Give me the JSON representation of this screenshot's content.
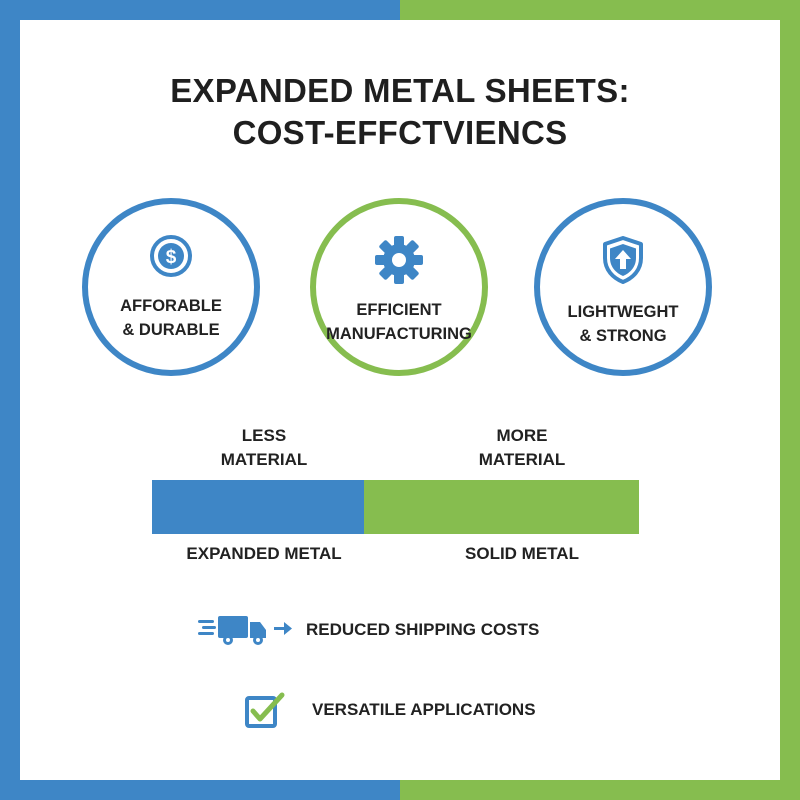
{
  "colors": {
    "blue": "#3e86c6",
    "green": "#86bd4f",
    "text": "#222222"
  },
  "title": {
    "line1": "EXPANDED METAL SHEETS:",
    "line2": "COST-EFFCTVIENCS"
  },
  "features": [
    {
      "icon": "dollar-coin-icon",
      "line1": "AFFORABLE",
      "line2": "& DURABLE",
      "ring_color": "blue"
    },
    {
      "icon": "gear-icon",
      "line1": "EFFICIENT",
      "line2": "MANUFACTURING",
      "ring_color": "green"
    },
    {
      "icon": "shield-arrow-icon",
      "line1": "LIGHTWEGHT",
      "line2": "& STRONG",
      "ring_color": "blue"
    }
  ],
  "comparison": {
    "left": {
      "top_line1": "LESS",
      "top_line2": "MATERIAL",
      "name": "EXPANDED METAL"
    },
    "right": {
      "top_line1": "MORE",
      "top_line2": "MATERIAL",
      "name": "SOLID METAL"
    }
  },
  "benefits": [
    {
      "icon": "delivery-truck-icon",
      "text": "REDUCED SHIPPING COSTS"
    },
    {
      "icon": "checkbox-checked-icon",
      "text": "VERSATILE APPLICATIONS"
    }
  ]
}
